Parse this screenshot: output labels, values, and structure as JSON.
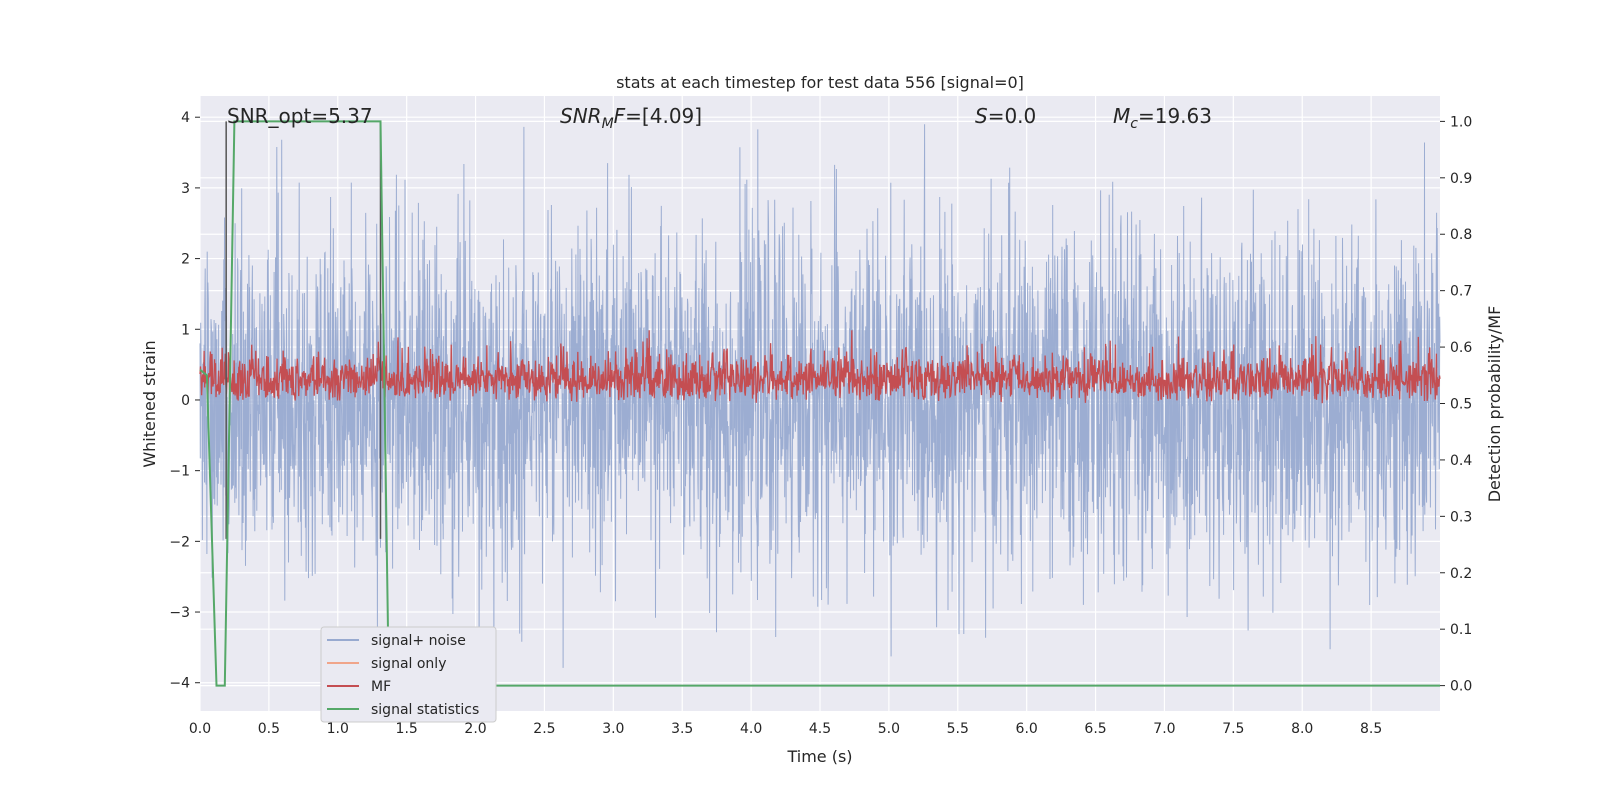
{
  "chart_data": {
    "type": "line",
    "title": "stats at each timestep for test data 556 [signal=0]",
    "xlabel": "Time (s)",
    "ylabel": "Whitened strain",
    "y2label": "Detection probability/MF",
    "xlim": [
      0.0,
      9.0
    ],
    "ylim": [
      -4.4,
      4.3
    ],
    "y2lim": [
      -0.045,
      1.045
    ],
    "x_ticks": [
      "0.0",
      "0.5",
      "1.0",
      "1.5",
      "2.0",
      "2.5",
      "3.0",
      "3.5",
      "4.0",
      "4.5",
      "5.0",
      "5.5",
      "6.0",
      "6.5",
      "7.0",
      "7.5",
      "8.0",
      "8.5"
    ],
    "y_ticks": [
      "−4",
      "−3",
      "−2",
      "−1",
      "0",
      "1",
      "2",
      "3",
      "4"
    ],
    "y2_ticks": [
      "0.0",
      "0.1",
      "0.2",
      "0.3",
      "0.4",
      "0.5",
      "0.6",
      "0.7",
      "0.8",
      "0.9",
      "1.0"
    ],
    "grid": true,
    "annotations": [
      "SNR_opt=5.37",
      "SNR_MF=[4.09]",
      "S=0.0",
      "M_c=19.63"
    ],
    "colors": {
      "background": "#eaeaf2",
      "signal_noise": "#98aad0",
      "signal_only": "#f0a58a",
      "mf": "#c44e52",
      "statistics": "#55a868",
      "markers": "#555555"
    },
    "series": [
      {
        "name": "signal+ noise",
        "axis": "left",
        "description_range": [
          -4.0,
          3.9
        ],
        "samples": 3600
      },
      {
        "name": "signal only",
        "axis": "left",
        "values": []
      },
      {
        "name": "MF",
        "axis": "right",
        "range": [
          0.5,
          0.63
        ],
        "samples": 2400
      },
      {
        "name": "signal statistics",
        "axis": "right",
        "x": [
          0.0,
          0.05,
          0.12,
          0.18,
          0.25,
          1.31,
          1.37,
          1.44,
          9.0
        ],
        "values": [
          0.56,
          0.55,
          0.0,
          0.0,
          1.0,
          1.0,
          0.0,
          0.0,
          0.0
        ]
      }
    ],
    "vertical_markers": [
      0.19,
      1.31
    ],
    "legend": {
      "placement": "lower-left",
      "entries": [
        "signal+ noise",
        "signal only",
        "MF",
        "signal statistics"
      ]
    }
  }
}
